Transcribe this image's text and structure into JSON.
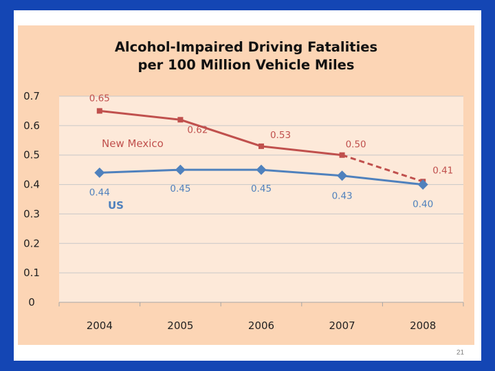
{
  "slide": {
    "page_number": "21"
  },
  "chart_data": {
    "type": "line",
    "title_lines": [
      "Alcohol-Impaired Driving Fatalities",
      "per 100 Million Vehicle Miles"
    ],
    "categories": [
      "2004",
      "2005",
      "2006",
      "2007",
      "2008"
    ],
    "ylim": [
      0,
      0.7
    ],
    "yticks": [
      0,
      0.1,
      0.2,
      0.3,
      0.4,
      0.5,
      0.6,
      0.7
    ],
    "ytick_labels": [
      "0",
      "0.1",
      "0.2",
      "0.3",
      "0.4",
      "0.5",
      "0.6",
      "0.7"
    ],
    "grid": true,
    "series": [
      {
        "name": "New Mexico",
        "values": [
          0.65,
          0.62,
          0.53,
          0.5,
          0.41
        ],
        "data_labels": [
          "0.65",
          "0.62",
          "0.53",
          "0.50",
          "0.41"
        ],
        "color": "#c0504d",
        "marker": "square",
        "dashed_last_segment": true
      },
      {
        "name": "US",
        "values": [
          0.44,
          0.45,
          0.45,
          0.43,
          0.4
        ],
        "data_labels": [
          "0.44",
          "0.45",
          "0.45",
          "0.43",
          "0.40"
        ],
        "color": "#4f81bd",
        "marker": "diamond",
        "dashed_last_segment": false
      }
    ],
    "plot_background": "#fde9d9",
    "panel_background": "#fcd5b5",
    "grid_color": "#c8c8c8"
  }
}
